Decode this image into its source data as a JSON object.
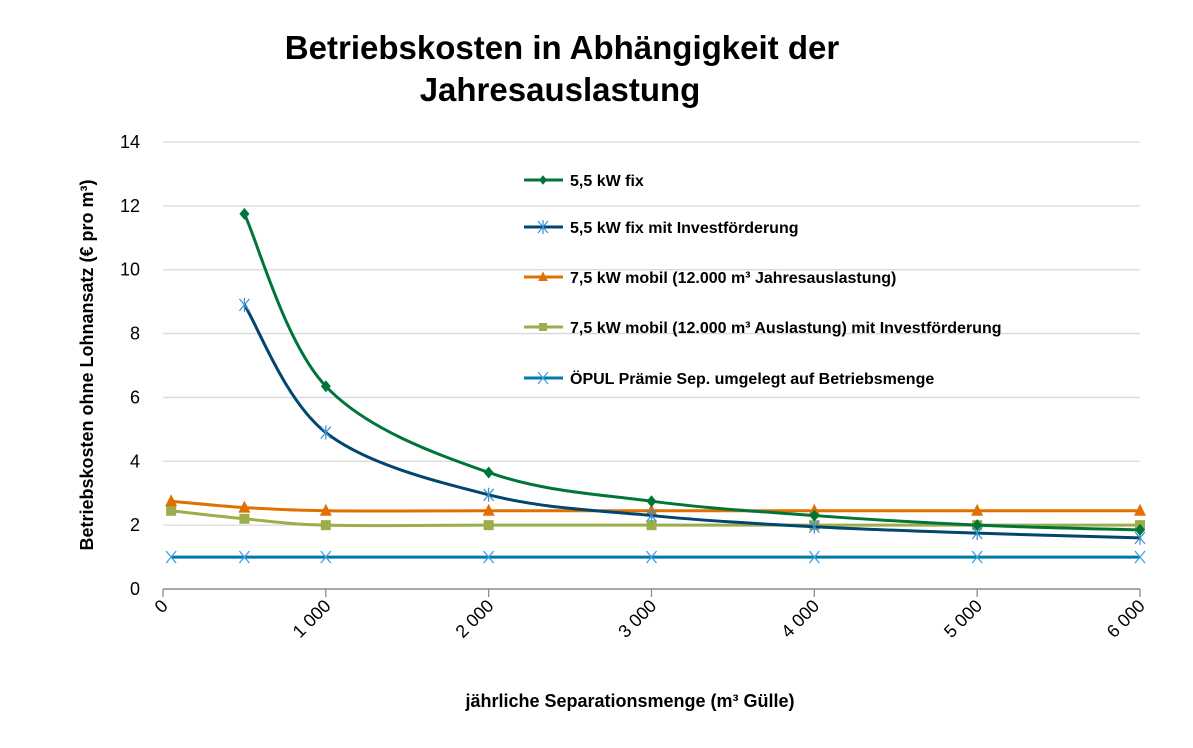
{
  "chart_data": {
    "type": "line",
    "title_lines": [
      "Betriebskosten in Abhängigkeit der",
      "Jahresauslastung"
    ],
    "xlabel": "jährliche Separationsmenge (m³ Gülle)",
    "ylabel": "Betriebskosten ohne Lohnansatz (€ pro m³)",
    "xlim": [
      0,
      6000
    ],
    "ylim": [
      0,
      14
    ],
    "xticks": [
      0,
      1000,
      2000,
      3000,
      4000,
      5000,
      6000
    ],
    "xtick_labels": [
      "0",
      "1 000",
      "2 000",
      "3 000",
      "4 000",
      "5 000",
      "6 000"
    ],
    "yticks": [
      0,
      2,
      4,
      6,
      8,
      10,
      12,
      14
    ],
    "ytick_labels": [
      "0",
      "2",
      "4",
      "6",
      "8",
      "10",
      "12",
      "14"
    ],
    "grid": "horizontal",
    "legend_position": "top-right-inside",
    "series": [
      {
        "name": "5,5 kW fix",
        "color": "#00753A",
        "marker": "diamond",
        "x": [
          500,
          1000,
          2000,
          3000,
          4000,
          5000,
          6000
        ],
        "y": [
          11.75,
          6.35,
          3.65,
          2.75,
          2.3,
          2.0,
          1.85
        ]
      },
      {
        "name": "5,5 kW fix mit Investförderung",
        "color": "#00466E",
        "marker": "asterisk",
        "x": [
          500,
          1000,
          2000,
          3000,
          4000,
          5000,
          6000
        ],
        "y": [
          8.9,
          4.9,
          2.95,
          2.3,
          1.95,
          1.75,
          1.6
        ]
      },
      {
        "name": "7,5 kW mobil (12.000 m³ Jahresauslastung)",
        "color": "#E07000",
        "marker": "triangle",
        "x": [
          50,
          500,
          1000,
          2000,
          3000,
          4000,
          5000,
          6000
        ],
        "y": [
          2.75,
          2.55,
          2.45,
          2.45,
          2.45,
          2.45,
          2.45,
          2.45
        ]
      },
      {
        "name": "7,5 kW mobil (12.000 m³ Auslastung) mit Investförderung",
        "color": "#9BAE4A",
        "marker": "square",
        "x": [
          50,
          500,
          1000,
          2000,
          3000,
          4000,
          5000,
          6000
        ],
        "y": [
          2.45,
          2.2,
          2.0,
          2.0,
          2.0,
          2.0,
          2.0,
          2.0
        ]
      },
      {
        "name": "ÖPUL Prämie Sep. umgelegt auf Betriebsmenge",
        "color": "#0077B0",
        "marker": "x",
        "x": [
          50,
          500,
          1000,
          2000,
          3000,
          4000,
          5000,
          6000
        ],
        "y": [
          1.0,
          1.0,
          1.0,
          1.0,
          1.0,
          1.0,
          1.0,
          1.0
        ]
      }
    ]
  }
}
